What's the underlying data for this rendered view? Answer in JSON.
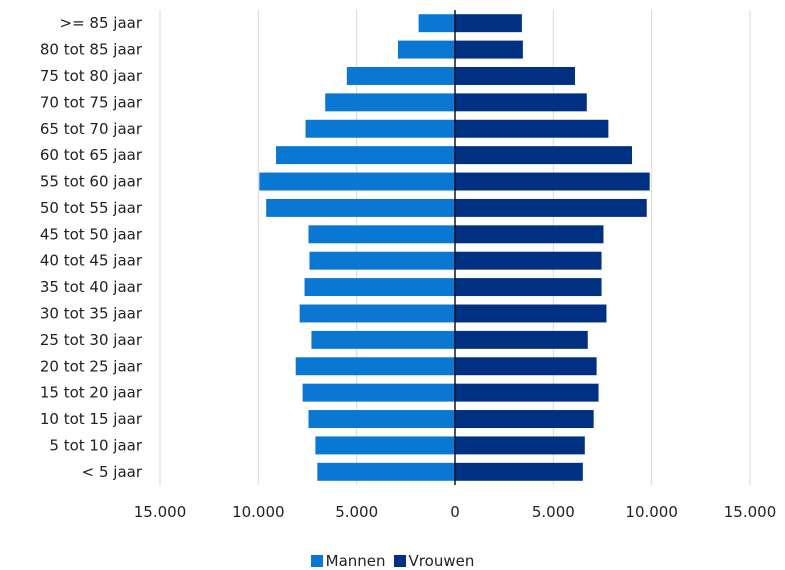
{
  "chart_data": {
    "type": "bar",
    "orientation": "horizontal",
    "categories": [
      ">= 85 jaar",
      "80 tot 85 jaar",
      "75 tot 80 jaar",
      "70 tot 75 jaar",
      "65 tot 70 jaar",
      "60 tot 65 jaar",
      "55 tot 60 jaar",
      "50 tot 55 jaar",
      "45 tot 50 jaar",
      "40 tot 45 jaar",
      "35 tot 40 jaar",
      "30 tot 35 jaar",
      "25 tot 30 jaar",
      "20 tot 25 jaar",
      "15 tot 20 jaar",
      "10 tot 15 jaar",
      "5 tot 10 jaar",
      "< 5 jaar"
    ],
    "series": [
      {
        "name": "Mannen",
        "color": "#0a78d2",
        "direction": "left",
        "values": [
          1850,
          2900,
          5500,
          6600,
          7600,
          9100,
          9950,
          9600,
          7450,
          7400,
          7650,
          7900,
          7300,
          8100,
          7750,
          7450,
          7100,
          7000
        ]
      },
      {
        "name": "Vrouwen",
        "color": "#003082",
        "direction": "right",
        "values": [
          3400,
          3450,
          6100,
          6700,
          7800,
          9000,
          9900,
          9750,
          7550,
          7450,
          7450,
          7700,
          6750,
          7200,
          7300,
          7050,
          6600,
          6500
        ]
      }
    ],
    "xlim": [
      -15000,
      15000
    ],
    "x_ticks": [
      -15000,
      -10000,
      -5000,
      0,
      5000,
      10000,
      15000
    ],
    "x_tick_labels": [
      "15.000",
      "10.000",
      "5.000",
      "0",
      "5.000",
      "10.000",
      "15.000"
    ],
    "grid": "vertical",
    "legend_position": "bottom"
  }
}
